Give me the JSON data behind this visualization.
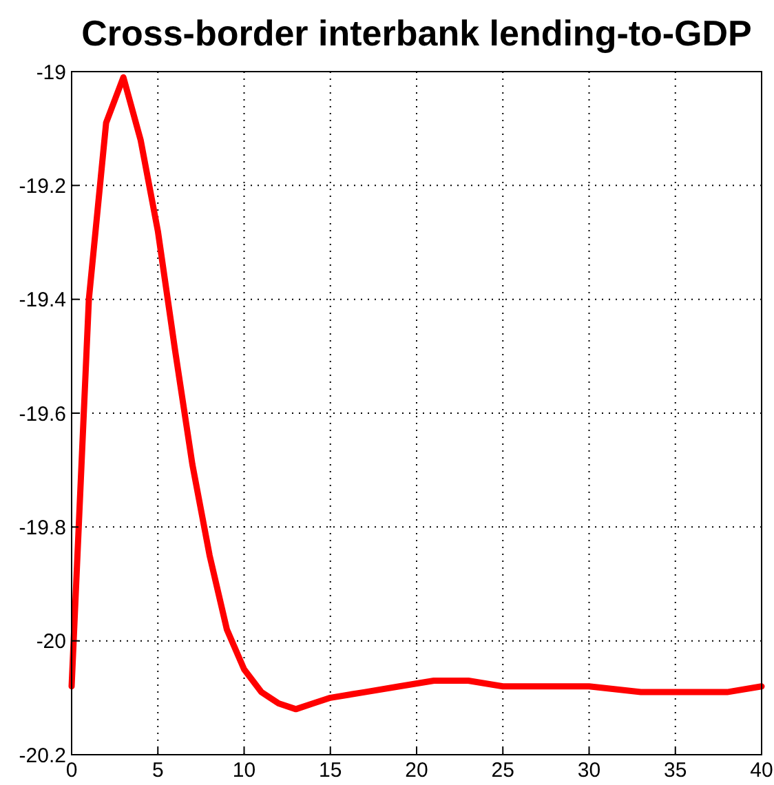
{
  "chart_data": {
    "type": "line",
    "title": "Cross-border interbank lending-to-GDP",
    "x": [
      0,
      1,
      2,
      3,
      4,
      5,
      6,
      7,
      8,
      9,
      10,
      11,
      12,
      13,
      14,
      15,
      17,
      19,
      21,
      23,
      25,
      28,
      30,
      33,
      35,
      38,
      40
    ],
    "series": [
      {
        "color": "#ff0000",
        "values": [
          -20.08,
          -19.4,
          -19.09,
          -19.01,
          -19.12,
          -19.28,
          -19.49,
          -19.69,
          -19.85,
          -19.98,
          -20.05,
          -20.09,
          -20.11,
          -20.12,
          -20.11,
          -20.1,
          -20.09,
          -20.08,
          -20.07,
          -20.07,
          -20.08,
          -20.08,
          -20.08,
          -20.09,
          -20.09,
          -20.09,
          -20.08
        ]
      }
    ],
    "xlim": [
      0,
      40
    ],
    "xticks": [
      0,
      5,
      10,
      15,
      20,
      25,
      30,
      35,
      40
    ],
    "ylim": [
      -20.2,
      -19
    ],
    "yticks": [
      -20.2,
      -20,
      -19.8,
      -19.6,
      -19.4,
      -19.2,
      -19
    ],
    "grid": true,
    "line_style": "solid",
    "marker": "none"
  }
}
